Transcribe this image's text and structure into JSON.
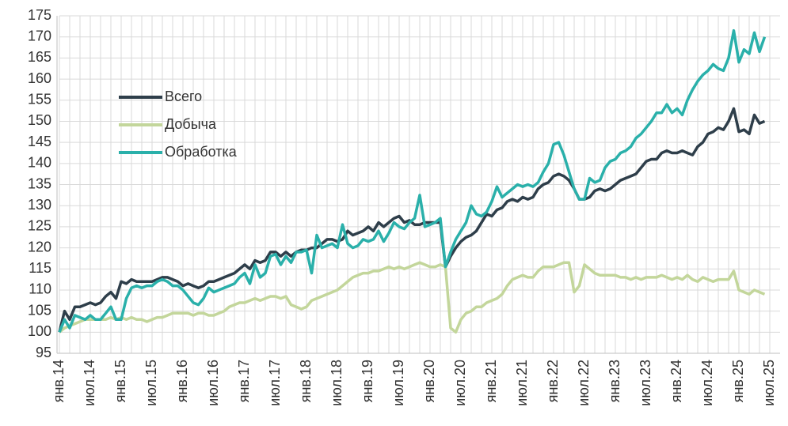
{
  "chart_data": {
    "type": "line",
    "categories": [
      "янв.14",
      null,
      null,
      null,
      null,
      null,
      "июл.14",
      null,
      null,
      null,
      null,
      null,
      "янв.15",
      null,
      null,
      null,
      null,
      null,
      "июл.15",
      null,
      null,
      null,
      null,
      null,
      "янв.16",
      null,
      null,
      null,
      null,
      null,
      "июл.16",
      null,
      null,
      null,
      null,
      null,
      "янв.17",
      null,
      null,
      null,
      null,
      null,
      "июл.17",
      null,
      null,
      null,
      null,
      null,
      "янв.18",
      null,
      null,
      null,
      null,
      null,
      "июл.18",
      null,
      null,
      null,
      null,
      null,
      "янв.19",
      null,
      null,
      null,
      null,
      null,
      "июл.19",
      null,
      null,
      null,
      null,
      null,
      "янв.20",
      null,
      null,
      null,
      null,
      null,
      "июл.20",
      null,
      null,
      null,
      null,
      null,
      "янв.21",
      null,
      null,
      null,
      null,
      null,
      "июл.21",
      null,
      null,
      null,
      null,
      null,
      "янв.22",
      null,
      null,
      null,
      null,
      null,
      "июл.22",
      null,
      null,
      null,
      null,
      null,
      "янв.23",
      null,
      null,
      null,
      null,
      null,
      "июл.23",
      null,
      null,
      null,
      null,
      null,
      "янв.24",
      null,
      null,
      null,
      null,
      null,
      "июл.24",
      null,
      null,
      null,
      null,
      null,
      "янв.25",
      null,
      null,
      null,
      null,
      null,
      "июл.25"
    ],
    "series": [
      {
        "name": "Всего",
        "color": "#2e3e4a",
        "values": [
          100,
          105,
          103,
          106,
          106,
          106.5,
          107,
          106.5,
          107,
          108.5,
          109.5,
          108,
          112,
          111.5,
          112.5,
          112,
          112,
          112,
          112,
          112.5,
          113,
          113,
          112.5,
          112,
          111,
          111.5,
          111,
          110.5,
          111,
          112,
          112,
          112.5,
          113,
          113.5,
          114,
          115,
          116,
          115,
          117,
          116.5,
          117,
          119,
          119,
          118,
          119,
          118,
          119,
          119.5,
          119.5,
          120,
          120,
          121,
          122,
          122,
          121.5,
          122,
          124,
          123,
          123.5,
          124,
          125,
          124,
          126,
          125,
          126,
          127,
          127.5,
          126,
          126.5,
          125.5,
          125.5,
          126,
          126,
          126,
          126,
          115.5,
          118,
          120,
          121.5,
          122.5,
          123,
          124,
          126,
          128,
          127.5,
          129,
          129.5,
          131,
          131.5,
          131,
          132,
          131.5,
          132,
          134,
          135,
          135.5,
          137,
          137.5,
          137,
          136,
          134,
          131.5,
          131.5,
          132,
          133.5,
          134,
          133.5,
          134,
          135,
          136,
          136.5,
          137,
          137.5,
          139,
          140.5,
          141,
          141,
          142.5,
          143,
          142.5,
          142.5,
          143,
          142.5,
          142,
          144,
          145,
          147,
          147.5,
          148.5,
          148,
          150,
          153,
          147.5,
          148,
          147,
          151.5,
          149.5,
          150,
          null
        ]
      },
      {
        "name": "Добыча",
        "color": "#c3d69b",
        "values": [
          100,
          101,
          101.5,
          102,
          102.5,
          103,
          103,
          103,
          103,
          103,
          103.5,
          103,
          103.5,
          103,
          103.5,
          103,
          103,
          102.5,
          103,
          103.5,
          103.5,
          104,
          104.5,
          104.5,
          104.5,
          104.5,
          104,
          104.5,
          104.5,
          104,
          104,
          104.5,
          105,
          106,
          106.5,
          107,
          107,
          107.5,
          108,
          107.5,
          108,
          108.5,
          108.5,
          108,
          108.5,
          106.5,
          106,
          105.5,
          106,
          107.5,
          108,
          108.5,
          109,
          109.5,
          110,
          111,
          112,
          113,
          113.5,
          114,
          114,
          114.5,
          114.5,
          115,
          115.5,
          115,
          115.5,
          115,
          115.5,
          116,
          116.5,
          116,
          115.5,
          115.5,
          116,
          115.5,
          101,
          100,
          103,
          104.5,
          105,
          106,
          106,
          107,
          107.5,
          108,
          109,
          111,
          112.5,
          113,
          113.5,
          113,
          113,
          114.5,
          115.5,
          115.5,
          115.5,
          116,
          116.5,
          116.5,
          109.5,
          111,
          116,
          115,
          114,
          113.5,
          113.5,
          113.5,
          113.5,
          113,
          113,
          112.5,
          113,
          112.5,
          113,
          113,
          113,
          113.5,
          113,
          112.5,
          113,
          112.5,
          113.5,
          112.5,
          112,
          113,
          112.5,
          112,
          112.5,
          112.5,
          112.5,
          114.5,
          110,
          109.5,
          109,
          110,
          109.5,
          109,
          null
        ]
      },
      {
        "name": "Обработка",
        "color": "#2ab0aa",
        "values": [
          100,
          103,
          101,
          104,
          103.5,
          103,
          104,
          103,
          103,
          104.5,
          106,
          103,
          103,
          108,
          110.5,
          111,
          110.5,
          111,
          111,
          112,
          112.5,
          112,
          111,
          111,
          110,
          108.5,
          107,
          106.5,
          108,
          110.5,
          109.5,
          110,
          110.5,
          111,
          111.5,
          113,
          114,
          111.5,
          116,
          113,
          114,
          118,
          118.5,
          116,
          118,
          116.5,
          119,
          119,
          119.5,
          114,
          123,
          120,
          120.5,
          121,
          120,
          125.5,
          121,
          120,
          120.5,
          122,
          121.5,
          122,
          124,
          121.5,
          123.5,
          126,
          125,
          124.5,
          126,
          127,
          132.5,
          125,
          125.5,
          126,
          127,
          115.5,
          119,
          122,
          124,
          126,
          130,
          128,
          127.5,
          128.5,
          131,
          134.5,
          132,
          133,
          134,
          135,
          134.5,
          135,
          134.5,
          135.5,
          138,
          140,
          144.5,
          145,
          142,
          138,
          134,
          131.5,
          131.5,
          136.5,
          135.5,
          136,
          139,
          140.5,
          141,
          142.5,
          143,
          144,
          146,
          147,
          148.5,
          150,
          152,
          152,
          154,
          152,
          153,
          151.5,
          155,
          157.5,
          159.5,
          161,
          162,
          163.5,
          162.5,
          162,
          165,
          171.5,
          164,
          167,
          166,
          171,
          166.5,
          170,
          null
        ]
      }
    ],
    "ylim": [
      95,
      175
    ],
    "yticks": [
      95,
      100,
      105,
      110,
      115,
      120,
      125,
      130,
      135,
      140,
      145,
      150,
      155,
      160,
      165,
      170,
      175
    ],
    "grid": true,
    "legend": "upper-left"
  }
}
